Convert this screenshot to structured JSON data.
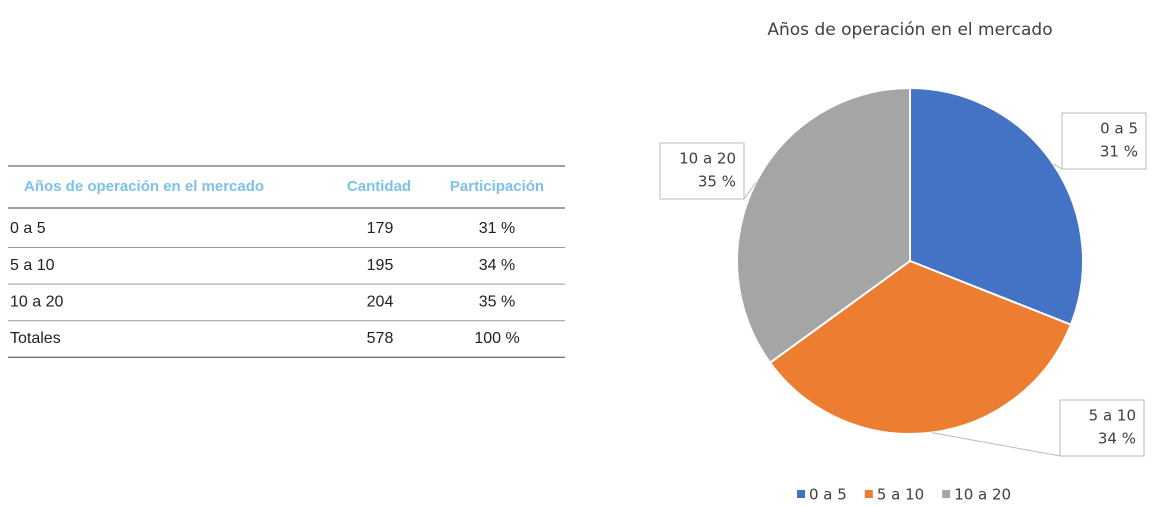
{
  "table": {
    "header": [
      "Años de operación en el mercado",
      "Cantidad",
      "Participación"
    ],
    "rows": [
      [
        "0 a 5",
        "179",
        "31 %"
      ],
      [
        "5 a 10",
        "195",
        "34 %"
      ],
      [
        "10 a 20",
        "204",
        "35 %"
      ],
      [
        "Totales",
        "578",
        "100 %"
      ]
    ]
  },
  "chart_data": {
    "type": "pie",
    "title": "Años de operación en el mercado",
    "categories": [
      "0 a 5",
      "5 a 10",
      "10 a 20"
    ],
    "values": [
      31,
      34,
      35
    ],
    "value_labels": [
      "31 %",
      "34 %",
      "35 %"
    ],
    "colors": [
      "#4472c4",
      "#ed7d31",
      "#a5a5a5"
    ],
    "legend": "bottom"
  }
}
